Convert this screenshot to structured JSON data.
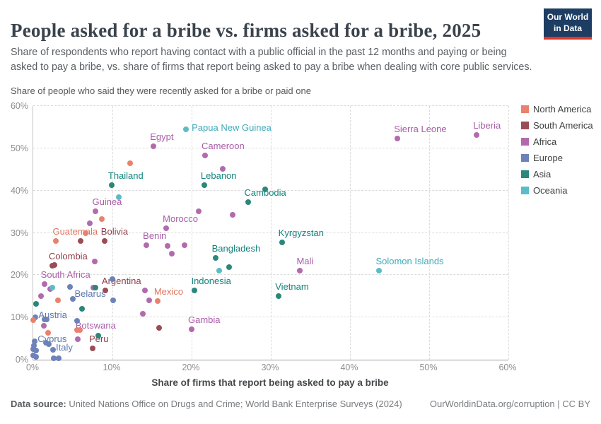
{
  "chart_data": {
    "type": "scatter",
    "title": "People asked for a bribe vs. firms asked for a bribe, 2025",
    "subtitle": "Share of respondents who report having contact with a public official in the past 12 months and paying or being asked to pay a bribe, vs. share of firms that report being asked to pay a bribe when dealing with core public services.",
    "x_axis": {
      "label": "Share of firms that report being asked to pay a bribe",
      "min": 0,
      "max": 60,
      "tick_labels": [
        "0%",
        "10%",
        "20%",
        "30%",
        "40%",
        "50%",
        "60%"
      ],
      "grid": true
    },
    "y_axis": {
      "label": "Share of people who said they were recently asked for a bribe or paid one",
      "min": 0,
      "max": 60,
      "tick_labels": [
        "0%",
        "10%",
        "20%",
        "30%",
        "40%",
        "50%",
        "60%"
      ],
      "grid": true
    },
    "legend_position": "right",
    "continents": [
      {
        "key": "north_america",
        "name": "North America",
        "color": "#e8826e",
        "label_color": "#e0745f"
      },
      {
        "key": "south_america",
        "name": "South America",
        "color": "#9a4d55",
        "label_color": "#8d3c48"
      },
      {
        "key": "africa",
        "name": "Africa",
        "color": "#b16bad",
        "label_color": "#a85ca8"
      },
      {
        "key": "europe",
        "name": "Europe",
        "color": "#6d82b8",
        "label_color": "#5e77ad"
      },
      {
        "key": "asia",
        "name": "Asia",
        "color": "#2a8779",
        "label_color": "#11837b"
      },
      {
        "key": "oceania",
        "name": "Oceania",
        "color": "#5bbcc7",
        "label_color": "#3fa9b8"
      }
    ],
    "points": [
      {
        "x": 19.3,
        "y": 54.5,
        "c": "oceania",
        "label": "Papua New Guinea",
        "pos": "right"
      },
      {
        "x": 15.2,
        "y": 50.4,
        "c": "africa",
        "label": "Egypt"
      },
      {
        "x": 21.7,
        "y": 48.3,
        "c": "africa",
        "label": "Cameroon"
      },
      {
        "x": 46.0,
        "y": 52.3,
        "c": "africa",
        "label": "Sierra Leone"
      },
      {
        "x": 56.0,
        "y": 53.2,
        "c": "africa",
        "label": "Liberia"
      },
      {
        "x": 9.9,
        "y": 41.3,
        "c": "asia",
        "label": "Thailand"
      },
      {
        "x": 21.6,
        "y": 41.3,
        "c": "asia",
        "label": "Lebanon"
      },
      {
        "x": 27.1,
        "y": 37.2,
        "c": "asia",
        "label": "Cambodia"
      },
      {
        "x": 7.9,
        "y": 35.1,
        "c": "africa",
        "label": "Guinea"
      },
      {
        "x": 16.8,
        "y": 31.1,
        "c": "africa",
        "label": "Morocco"
      },
      {
        "x": 2.9,
        "y": 28.1,
        "c": "north_america",
        "label": "Guatemala"
      },
      {
        "x": 9.0,
        "y": 28.1,
        "c": "south_america",
        "label": "Bolivia"
      },
      {
        "x": 14.3,
        "y": 27.1,
        "c": "africa",
        "label": "Benin"
      },
      {
        "x": 31.4,
        "y": 27.7,
        "c": "asia",
        "label": "Kyrgyzstan"
      },
      {
        "x": 2.4,
        "y": 22.2,
        "c": "south_america",
        "label": "Colombia"
      },
      {
        "x": 1.4,
        "y": 17.9,
        "c": "africa",
        "label": "South Africa"
      },
      {
        "x": 4.6,
        "y": 17.3,
        "c": "europe",
        "label": "Belarus",
        "pos": "below-right"
      },
      {
        "x": 9.1,
        "y": 16.3,
        "c": "south_america",
        "label": "Argentina"
      },
      {
        "x": 15.7,
        "y": 13.9,
        "c": "north_america",
        "label": "Mexico"
      },
      {
        "x": 20.4,
        "y": 16.4,
        "c": "asia",
        "label": "Indonesia"
      },
      {
        "x": 23.0,
        "y": 24.0,
        "c": "asia",
        "label": "Bangladesh"
      },
      {
        "x": 33.7,
        "y": 21.0,
        "c": "africa",
        "label": "Mali"
      },
      {
        "x": 43.7,
        "y": 21.0,
        "c": "oceania",
        "label": "Solomon Islands"
      },
      {
        "x": 31.0,
        "y": 15.1,
        "c": "asia",
        "label": "Vietnam"
      },
      {
        "x": 0.3,
        "y": 10.0,
        "c": "europe",
        "label": "Austria",
        "pos": "right-up"
      },
      {
        "x": 5.6,
        "y": 4.8,
        "c": "africa",
        "label": "Botswana",
        "pos": "above-right-far"
      },
      {
        "x": 0.2,
        "y": 4.3,
        "c": "europe",
        "label": "Cyprus",
        "pos": "right-up"
      },
      {
        "x": 2.5,
        "y": 2.3,
        "c": "europe",
        "label": "Italy",
        "pos": "right-up"
      },
      {
        "x": 7.5,
        "y": 2.6,
        "c": "south_america",
        "label": "Peru"
      },
      {
        "x": 20.0,
        "y": 7.2,
        "c": "africa",
        "label": "Gambia"
      },
      {
        "x": 12.2,
        "y": 46.5,
        "c": "north_america"
      },
      {
        "x": 23.9,
        "y": 45.2,
        "c": "africa"
      },
      {
        "x": 29.3,
        "y": 40.3,
        "c": "asia"
      },
      {
        "x": 10.8,
        "y": 38.4,
        "c": "oceania"
      },
      {
        "x": 8.7,
        "y": 33.2,
        "c": "north_america"
      },
      {
        "x": 7.1,
        "y": 32.2,
        "c": "africa"
      },
      {
        "x": 6.6,
        "y": 30.0,
        "c": "north_america"
      },
      {
        "x": 20.9,
        "y": 35.1,
        "c": "africa"
      },
      {
        "x": 25.2,
        "y": 34.3,
        "c": "africa"
      },
      {
        "x": 6.0,
        "y": 28.1,
        "c": "south_america"
      },
      {
        "x": 17.0,
        "y": 26.9,
        "c": "africa"
      },
      {
        "x": 19.1,
        "y": 27.1,
        "c": "africa"
      },
      {
        "x": 17.5,
        "y": 25.0,
        "c": "africa"
      },
      {
        "x": 24.7,
        "y": 21.9,
        "c": "asia"
      },
      {
        "x": 23.5,
        "y": 21.0,
        "c": "oceania"
      },
      {
        "x": 7.8,
        "y": 23.2,
        "c": "africa"
      },
      {
        "x": 2.7,
        "y": 22.4,
        "c": "south_america"
      },
      {
        "x": 10.0,
        "y": 19.0,
        "c": "europe"
      },
      {
        "x": 10.1,
        "y": 14.0,
        "c": "europe"
      },
      {
        "x": 14.1,
        "y": 16.3,
        "c": "africa"
      },
      {
        "x": 14.6,
        "y": 14.0,
        "c": "africa"
      },
      {
        "x": 13.8,
        "y": 10.9,
        "c": "africa"
      },
      {
        "x": 15.9,
        "y": 7.5,
        "c": "south_america"
      },
      {
        "x": 2.1,
        "y": 16.7,
        "c": "africa"
      },
      {
        "x": 1.0,
        "y": 15.1,
        "c": "africa"
      },
      {
        "x": 2.4,
        "y": 17.1,
        "c": "oceania"
      },
      {
        "x": 0.4,
        "y": 13.2,
        "c": "asia"
      },
      {
        "x": 7.6,
        "y": 17.1,
        "c": "africa"
      },
      {
        "x": 7.9,
        "y": 17.1,
        "c": "asia"
      },
      {
        "x": 5.0,
        "y": 14.4,
        "c": "europe"
      },
      {
        "x": 6.2,
        "y": 12.0,
        "c": "asia"
      },
      {
        "x": 3.1,
        "y": 14.0,
        "c": "north_america"
      },
      {
        "x": 0.0,
        "y": 9.4,
        "c": "north_america"
      },
      {
        "x": 1.4,
        "y": 9.5,
        "c": "europe"
      },
      {
        "x": 1.7,
        "y": 9.5,
        "c": "europe"
      },
      {
        "x": 5.5,
        "y": 9.2,
        "c": "europe"
      },
      {
        "x": 1.3,
        "y": 8.1,
        "c": "africa"
      },
      {
        "x": 1.9,
        "y": 6.4,
        "c": "north_america"
      },
      {
        "x": 5.5,
        "y": 7.1,
        "c": "north_america"
      },
      {
        "x": 5.9,
        "y": 7.1,
        "c": "north_america"
      },
      {
        "x": 8.2,
        "y": 5.7,
        "c": "asia"
      },
      {
        "x": 0.1,
        "y": 3.3,
        "c": "europe"
      },
      {
        "x": 0.0,
        "y": 2.5,
        "c": "europe"
      },
      {
        "x": 0.4,
        "y": 2.1,
        "c": "europe"
      },
      {
        "x": 0.0,
        "y": 1.0,
        "c": "europe"
      },
      {
        "x": 0.4,
        "y": 0.6,
        "c": "europe"
      },
      {
        "x": 1.6,
        "y": 4.0,
        "c": "europe"
      },
      {
        "x": 2.0,
        "y": 3.6,
        "c": "europe"
      },
      {
        "x": 2.6,
        "y": 0.4,
        "c": "europe"
      },
      {
        "x": 3.2,
        "y": 0.3,
        "c": "europe"
      }
    ]
  },
  "branding": {
    "logo_line1": "Our World",
    "logo_line2": "in Data",
    "logo_bg": "#1d3d63",
    "logo_bar": "#e0362c"
  },
  "footer": {
    "datasource_label": "Data source:",
    "datasource_text": "United Nations Office on Drugs and Crime; World Bank Enterprise Surveys (2024)",
    "license_text": "OurWorldinData.org/corruption | CC BY"
  }
}
